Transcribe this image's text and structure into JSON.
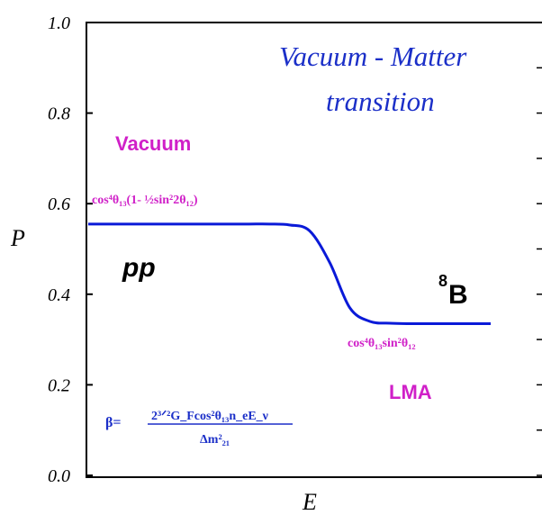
{
  "chart_data": {
    "type": "line",
    "xlabel": "E",
    "ylabel": "P",
    "ylim": [
      0.0,
      1.0
    ],
    "y_ticks": [
      "0.0",
      "0.2",
      "0.4",
      "0.6",
      "0.8",
      "1.0"
    ],
    "y_tick_values": [
      0.0,
      0.2,
      0.4,
      0.6,
      0.8,
      1.0
    ],
    "grid": false,
    "series": [
      {
        "color": "#0a1ad8",
        "x": [
          0,
          0.05,
          0.1,
          0.15,
          0.2,
          0.25,
          0.3,
          0.35,
          0.4,
          0.45,
          0.5,
          0.55,
          0.6,
          0.65,
          0.7,
          0.75,
          0.8,
          0.85,
          0.9,
          0.95,
          1.0
        ],
        "y": [
          0.555,
          0.555,
          0.555,
          0.555,
          0.555,
          0.555,
          0.555,
          0.555,
          0.555,
          0.555,
          0.553,
          0.54,
          0.47,
          0.37,
          0.34,
          0.336,
          0.335,
          0.335,
          0.335,
          0.335,
          0.335
        ]
      }
    ],
    "annotations": {
      "title_line1": "Vacuum - Matter",
      "title_line2": "transition",
      "vacuum": "Vacuum",
      "lma": "LMA",
      "pp": "pp",
      "b8_sup": "8",
      "b8": "B",
      "vacuum_formula": "cos⁴θ₁₃(1- ½sin²2θ₁₂)",
      "lma_formula": "cos⁴θ₁₃sin²θ₁₂",
      "beta_lhs": "β=",
      "beta_num": "2³ᐟ²G_Fcos²θ₁₃n_eE_ν",
      "beta_den": "Δm²₂₁"
    },
    "colors": {
      "curve": "#0a1ad8",
      "magenta": "#d020c8",
      "title": "#1b2fc8",
      "axis": "#000000"
    }
  }
}
